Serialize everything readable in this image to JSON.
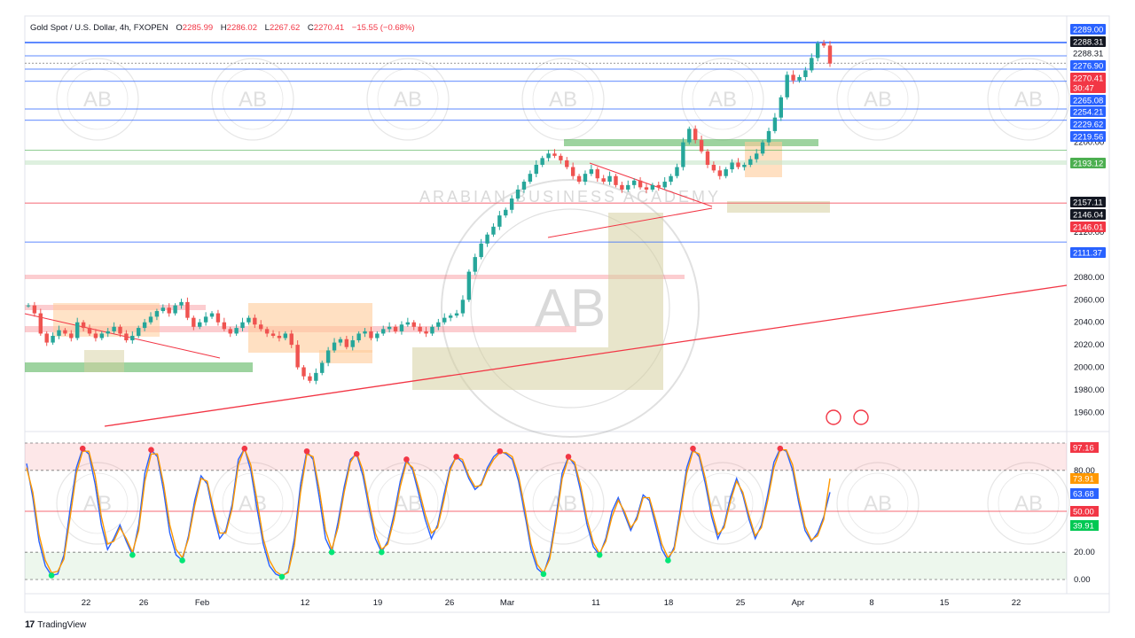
{
  "header": {
    "symbol": "Gold Spot / U.S. Dollar, 4h, FXOPEN",
    "o_label": "O",
    "o_value": "2285.99",
    "h_label": "H",
    "h_value": "2286.02",
    "l_label": "L",
    "l_value": "2267.62",
    "c_label": "C",
    "c_value": "2270.41",
    "change": "−15.55 (−0.68%)"
  },
  "watermark": {
    "text": "ARABIAN BUSINESS ACADEMY",
    "initials": "AB"
  },
  "footer": {
    "brand": "TradingView"
  },
  "colors": {
    "up": "#26a69a",
    "down": "#ef5350",
    "stoch_k": "#2962ff",
    "stoch_d": "#ff9800",
    "blue_line": "#2962ff",
    "red_line": "#f23645",
    "green_zone": "#4caf50",
    "orange_zone": "#ffcc99",
    "tan_zone": "#d6cfa0"
  },
  "chart_data": [
    {
      "type": "candlestick",
      "title": "Gold Spot / U.S. Dollar, 4h, FXOPEN",
      "x_ticks": [
        "22",
        "26",
        "Feb",
        "12",
        "19",
        "26",
        "Mar",
        "11",
        "18",
        "25",
        "Apr",
        "8",
        "15",
        "22"
      ],
      "y_ticks": [
        "2200.00",
        "2180.00",
        "2120.00",
        "2100.00",
        "2080.00",
        "2060.00",
        "2040.00",
        "2020.00",
        "2000.00",
        "1980.00",
        "1960.00"
      ],
      "ylim": [
        1950,
        2295
      ],
      "price_labels": [
        {
          "value": "2289.00",
          "style": "blue"
        },
        {
          "value": "2288.31",
          "style": "black"
        },
        {
          "value": "2288.31",
          "style": "plain"
        },
        {
          "value": "2276.90",
          "style": "blue"
        },
        {
          "value": "2270.41",
          "style": "red"
        },
        {
          "value": "30:47",
          "style": "red"
        },
        {
          "value": "2265.08",
          "style": "blue"
        },
        {
          "value": "2254.21",
          "style": "blue"
        },
        {
          "value": "2229.62",
          "style": "blue"
        },
        {
          "value": "2219.56",
          "style": "blue"
        },
        {
          "value": "2193.12",
          "style": "green"
        },
        {
          "value": "2157.11",
          "style": "black"
        },
        {
          "value": "2146.04",
          "style": "black"
        },
        {
          "value": "2146.01",
          "style": "red"
        },
        {
          "value": "2111.37",
          "style": "blue"
        }
      ],
      "horizontal_levels": [
        {
          "price": 2289.0,
          "color": "blue"
        },
        {
          "price": 2288.31,
          "color": "blue"
        },
        {
          "price": 2276.9,
          "color": "blue"
        },
        {
          "price": 2270.41,
          "color": "dotted"
        },
        {
          "price": 2265.08,
          "color": "blue"
        },
        {
          "price": 2254.21,
          "color": "blue"
        },
        {
          "price": 2229.62,
          "color": "blue"
        },
        {
          "price": 2219.56,
          "color": "blue"
        },
        {
          "price": 2193.12,
          "color": "green"
        },
        {
          "price": 2146.04,
          "color": "red"
        },
        {
          "price": 2111.37,
          "color": "blue"
        }
      ],
      "close_series": [
        2055,
        2048,
        2030,
        2022,
        2028,
        2033,
        2030,
        2026,
        2040,
        2035,
        2030,
        2026,
        2030,
        2032,
        2036,
        2030,
        2024,
        2028,
        2035,
        2040,
        2045,
        2050,
        2053,
        2048,
        2055,
        2058,
        2044,
        2036,
        2040,
        2045,
        2048,
        2040,
        2034,
        2030,
        2035,
        2040,
        2044,
        2038,
        2034,
        2030,
        2028,
        2026,
        2030,
        2020,
        2000,
        1992,
        1988,
        1995,
        2004,
        2015,
        2022,
        2025,
        2018,
        2024,
        2030,
        2032,
        2026,
        2030,
        2034,
        2036,
        2032,
        2038,
        2040,
        2036,
        2032,
        2030,
        2036,
        2040,
        2044,
        2046,
        2048,
        2060,
        2085,
        2098,
        2110,
        2118,
        2125,
        2135,
        2140,
        2150,
        2158,
        2165,
        2172,
        2180,
        2186,
        2190,
        2188,
        2184,
        2178,
        2170,
        2165,
        2172,
        2176,
        2168,
        2165,
        2170,
        2162,
        2158,
        2162,
        2166,
        2160,
        2158,
        2162,
        2160,
        2165,
        2170,
        2178,
        2200,
        2212,
        2202,
        2192,
        2180,
        2175,
        2170,
        2176,
        2182,
        2178,
        2180,
        2185,
        2190,
        2200,
        2210,
        2222,
        2240,
        2260,
        2255,
        2258,
        2264,
        2275,
        2288,
        2286,
        2270
      ]
    },
    {
      "type": "line",
      "title": "",
      "y_ticks": [
        "80.00",
        "20.00",
        "0.00"
      ],
      "ylim": [
        0,
        100
      ],
      "value_labels": [
        {
          "value": "97.16",
          "style": "red"
        },
        {
          "value": "73.91",
          "style": "orange"
        },
        {
          "value": "63.68",
          "style": "blue"
        },
        {
          "value": "50.00",
          "style": "red"
        },
        {
          "value": "39.91",
          "style": "green"
        }
      ],
      "levels": [
        80,
        50,
        20
      ],
      "series": [
        {
          "color": "blue",
          "values": [
            85,
            60,
            28,
            10,
            3,
            4,
            18,
            52,
            82,
            96,
            92,
            70,
            40,
            22,
            30,
            40,
            28,
            18,
            40,
            78,
            95,
            90,
            65,
            34,
            18,
            14,
            32,
            58,
            76,
            70,
            48,
            30,
            36,
            55,
            88,
            96,
            80,
            52,
            26,
            10,
            4,
            2,
            6,
            30,
            70,
            94,
            88,
            60,
            30,
            20,
            42,
            68,
            88,
            92,
            76,
            52,
            30,
            20,
            28,
            48,
            72,
            88,
            80,
            62,
            44,
            30,
            40,
            62,
            82,
            90,
            86,
            74,
            66,
            70,
            82,
            90,
            94,
            92,
            88,
            72,
            48,
            22,
            8,
            4,
            18,
            46,
            78,
            90,
            84,
            64,
            40,
            24,
            18,
            30,
            50,
            60,
            48,
            36,
            46,
            62,
            58,
            40,
            22,
            14,
            24,
            52,
            82,
            96,
            90,
            70,
            46,
            30,
            40,
            60,
            74,
            62,
            44,
            30,
            40,
            62,
            86,
            96,
            94,
            80,
            56,
            36,
            28,
            34,
            46,
            64
          ]
        },
        {
          "color": "orange",
          "values": [
            82,
            64,
            33,
            14,
            5,
            6,
            15,
            46,
            78,
            94,
            94,
            76,
            46,
            26,
            28,
            38,
            30,
            20,
            36,
            72,
            92,
            92,
            70,
            40,
            22,
            16,
            30,
            54,
            74,
            72,
            52,
            34,
            34,
            52,
            84,
            96,
            84,
            58,
            30,
            14,
            6,
            3,
            5,
            25,
            64,
            92,
            90,
            66,
            36,
            22,
            38,
            64,
            86,
            93,
            80,
            56,
            34,
            22,
            26,
            44,
            68,
            86,
            82,
            66,
            48,
            34,
            38,
            58,
            80,
            90,
            88,
            76,
            68,
            69,
            80,
            88,
            93,
            93,
            90,
            76,
            52,
            26,
            11,
            5,
            15,
            42,
            74,
            89,
            86,
            68,
            44,
            27,
            19,
            28,
            46,
            58,
            50,
            38,
            44,
            60,
            60,
            44,
            26,
            16,
            22,
            48,
            78,
            94,
            92,
            74,
            50,
            33,
            38,
            57,
            72,
            64,
            47,
            32,
            38,
            58,
            82,
            95,
            95,
            84,
            60,
            39,
            29,
            32,
            44,
            74
          ]
        }
      ]
    }
  ]
}
